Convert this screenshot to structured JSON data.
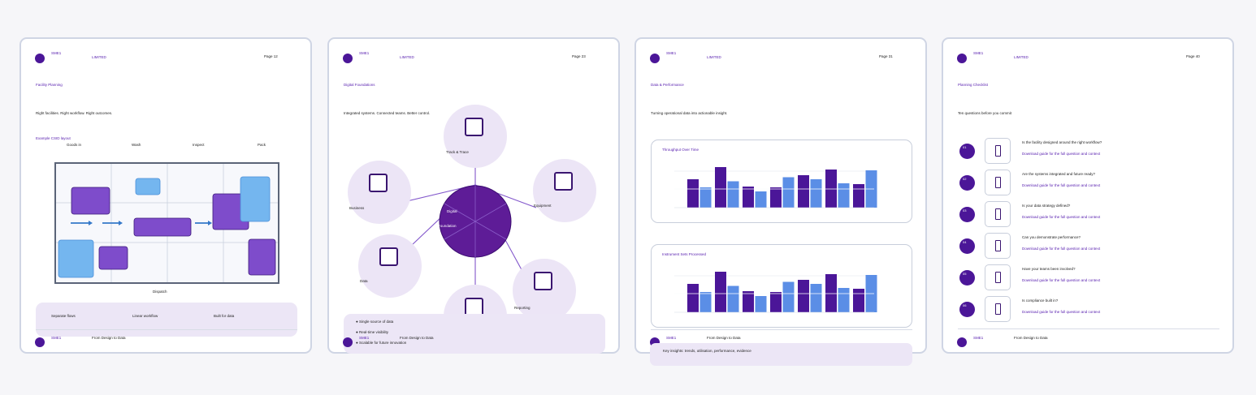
{
  "common": {
    "brand": "SME1",
    "limited": "LIMITED",
    "footer": "From Design to Data"
  },
  "page1": {
    "page_no": "Page 12",
    "section": "Facility Planning",
    "lead": "Right facilities. Right workflow. Right outcomes.",
    "layout_title": "Example CSID layout",
    "zones": [
      "Goods in",
      "Wash",
      "Inspect",
      "Pack"
    ],
    "bottom_zone": "Dispatch",
    "band_items": [
      "Separate flows",
      "Linear workflow",
      "Built for data"
    ]
  },
  "page2": {
    "page_no": "Page 23",
    "section": "Digital Foundations",
    "lead": "Integrated systems. Connected teams. Better control.",
    "hub_labels": [
      "Digital",
      "Foundation"
    ],
    "nodes": [
      "Track & Trace",
      "Equipment",
      "Reporting",
      "Data",
      "Business"
    ],
    "bullets": [
      "Single source of data",
      "Real-time visibility",
      "Scalable for future innovation"
    ]
  },
  "page3": {
    "page_no": "Page 31",
    "section": "Data & Performance",
    "lead": "Turning operational data into actionable insight.",
    "band_text": "Key insights: trends, utilisation, performance, evidence",
    "colors": {
      "dark": "#4b1698",
      "light": "#5b8ee6"
    },
    "chart_data": [
      {
        "type": "bar",
        "title": "Throughput Over Time",
        "series": [
          {
            "values": [
              70,
              100,
              52,
              50,
              80,
              94,
              58
            ]
          },
          {
            "values": [
              50,
              65,
              40,
              75,
              70,
              60,
              92
            ]
          }
        ]
      },
      {
        "type": "bar",
        "title": "Instrument Sets Processed",
        "series": [
          {
            "values": [
              70,
              100,
              52,
              50,
              80,
              94,
              58
            ]
          },
          {
            "values": [
              50,
              65,
              40,
              75,
              70,
              60,
              92
            ]
          }
        ]
      }
    ]
  },
  "page4": {
    "page_no": "Page 40",
    "section": "Planning Checklist",
    "lead": "Ten questions before you commit",
    "items": [
      {
        "num": "01",
        "question": "Is the facility designed around the right workflow?",
        "link": "Download guide for the full question and context"
      },
      {
        "num": "02",
        "question": "Are the systems integrated and future ready?",
        "link": "Download guide for the full question and context"
      },
      {
        "num": "03",
        "question": "Is your data strategy defined?",
        "link": "Download guide for the full question and context"
      },
      {
        "num": "04",
        "question": "Can you demonstrate performance?",
        "link": "Download guide for the full question and context"
      },
      {
        "num": "05",
        "question": "Have your teams been involved?",
        "link": "Download guide for the full question and context"
      },
      {
        "num": "06",
        "question": "Is compliance built in?",
        "link": "Download guide for the full question and context"
      }
    ]
  }
}
